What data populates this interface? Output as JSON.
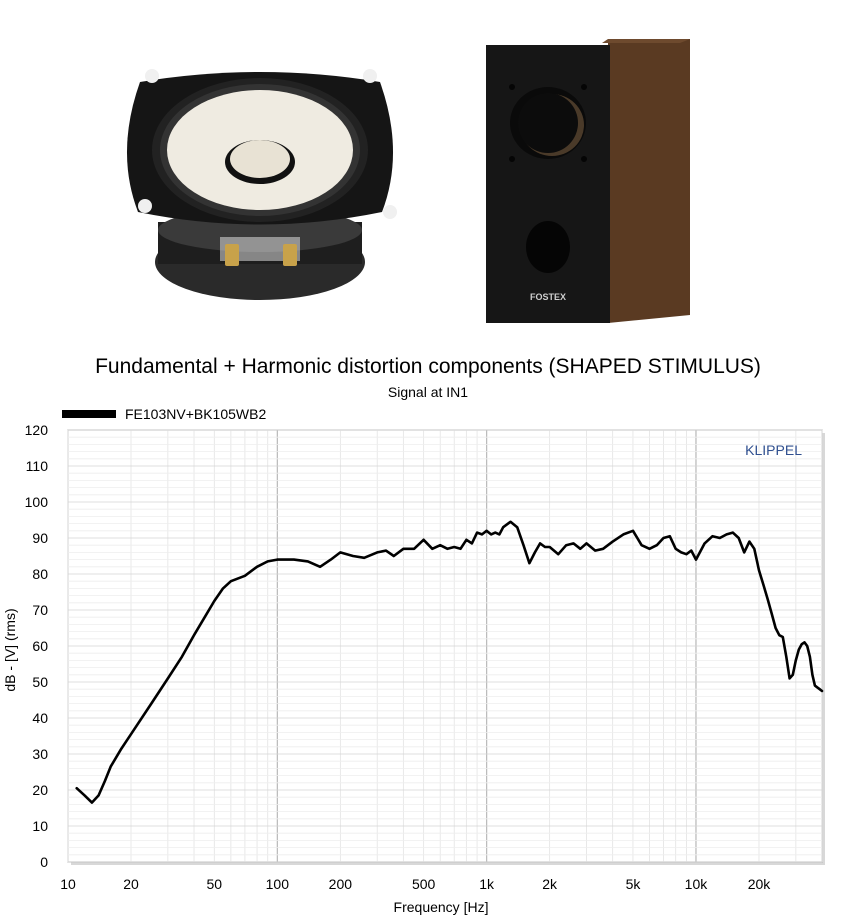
{
  "colors": {
    "series": "#000000",
    "watermark": "#2f4f8f",
    "grid_major": "#b8b8b8",
    "grid_minor": "#e3e3e3",
    "cone": "#efebe1",
    "cabinet_front": "#161616",
    "cabinet_side": "#5a3a22"
  },
  "photos": {
    "speaker_icon": "speaker-driver-photo",
    "cabinet_icon": "speaker-cabinet-photo",
    "cabinet_logo": "FOSTEX"
  },
  "chart_data": {
    "type": "line",
    "title": "Fundamental + Harmonic distortion components (SHAPED STIMULUS)",
    "subtitle": "Signal at IN1",
    "xlabel": "Frequency [Hz]",
    "ylabel": "dB - [V]  (rms)",
    "watermark": "KLIPPEL",
    "x_scale": "log",
    "xlim": [
      10,
      40000
    ],
    "ylim": [
      0,
      120
    ],
    "grid": true,
    "legend_position": "top-left",
    "x_ticks": [
      {
        "value": 10,
        "label": "10"
      },
      {
        "value": 20,
        "label": "20"
      },
      {
        "value": 50,
        "label": "50"
      },
      {
        "value": 100,
        "label": "100"
      },
      {
        "value": 200,
        "label": "200"
      },
      {
        "value": 500,
        "label": "500"
      },
      {
        "value": 1000,
        "label": "1k"
      },
      {
        "value": 2000,
        "label": "2k"
      },
      {
        "value": 5000,
        "label": "5k"
      },
      {
        "value": 10000,
        "label": "10k"
      },
      {
        "value": 20000,
        "label": "20k"
      }
    ],
    "y_ticks": [
      0,
      10,
      20,
      30,
      40,
      50,
      60,
      70,
      80,
      90,
      100,
      110,
      120
    ],
    "series": [
      {
        "name": "FE103NV+BK105WB2",
        "color": "#000000",
        "points": [
          [
            11,
            20.5
          ],
          [
            12,
            18.5
          ],
          [
            13,
            16.5
          ],
          [
            14,
            18.5
          ],
          [
            15,
            22.5
          ],
          [
            16,
            26.5
          ],
          [
            18,
            31.5
          ],
          [
            20,
            35.5
          ],
          [
            25,
            44
          ],
          [
            30,
            51
          ],
          [
            35,
            57
          ],
          [
            40,
            63
          ],
          [
            45,
            68
          ],
          [
            50,
            72.5
          ],
          [
            55,
            76
          ],
          [
            60,
            78
          ],
          [
            70,
            79.5
          ],
          [
            80,
            82
          ],
          [
            90,
            83.5
          ],
          [
            100,
            84
          ],
          [
            120,
            84
          ],
          [
            140,
            83.5
          ],
          [
            160,
            82
          ],
          [
            180,
            84
          ],
          [
            200,
            86
          ],
          [
            230,
            85
          ],
          [
            260,
            84.5
          ],
          [
            300,
            86
          ],
          [
            330,
            86.5
          ],
          [
            360,
            85
          ],
          [
            400,
            87
          ],
          [
            450,
            87
          ],
          [
            500,
            89.5
          ],
          [
            550,
            87
          ],
          [
            600,
            88
          ],
          [
            650,
            87
          ],
          [
            700,
            87.5
          ],
          [
            750,
            87
          ],
          [
            800,
            89.5
          ],
          [
            850,
            88.5
          ],
          [
            900,
            91.5
          ],
          [
            950,
            91
          ],
          [
            1000,
            92
          ],
          [
            1050,
            91
          ],
          [
            1100,
            91.5
          ],
          [
            1150,
            91
          ],
          [
            1200,
            93
          ],
          [
            1300,
            94.5
          ],
          [
            1400,
            93
          ],
          [
            1500,
            88
          ],
          [
            1600,
            83
          ],
          [
            1700,
            86
          ],
          [
            1800,
            88.5
          ],
          [
            1900,
            87.5
          ],
          [
            2000,
            87.5
          ],
          [
            2200,
            85.5
          ],
          [
            2400,
            88
          ],
          [
            2600,
            88.5
          ],
          [
            2800,
            87
          ],
          [
            3000,
            88.5
          ],
          [
            3300,
            86.5
          ],
          [
            3600,
            87
          ],
          [
            4000,
            89
          ],
          [
            4500,
            91
          ],
          [
            5000,
            92
          ],
          [
            5500,
            88
          ],
          [
            6000,
            87
          ],
          [
            6500,
            88
          ],
          [
            7000,
            90
          ],
          [
            7500,
            90.5
          ],
          [
            8000,
            87
          ],
          [
            8500,
            86
          ],
          [
            9000,
            85.5
          ],
          [
            9500,
            86.5
          ],
          [
            10000,
            84
          ],
          [
            11000,
            88.5
          ],
          [
            12000,
            90.5
          ],
          [
            13000,
            90
          ],
          [
            14000,
            91
          ],
          [
            15000,
            91.5
          ],
          [
            16000,
            90
          ],
          [
            17000,
            86
          ],
          [
            18000,
            89
          ],
          [
            19000,
            87
          ],
          [
            20000,
            81
          ],
          [
            21000,
            77
          ],
          [
            22000,
            73
          ],
          [
            23000,
            69
          ],
          [
            24000,
            65
          ],
          [
            25000,
            63
          ],
          [
            26000,
            62.5
          ],
          [
            27000,
            57
          ],
          [
            28000,
            51
          ],
          [
            29000,
            52
          ],
          [
            30000,
            56
          ],
          [
            31000,
            59
          ],
          [
            32000,
            60.5
          ],
          [
            33000,
            61
          ],
          [
            34000,
            60
          ],
          [
            35000,
            57
          ],
          [
            36000,
            52
          ],
          [
            37000,
            49
          ],
          [
            38000,
            48.5
          ],
          [
            39000,
            48
          ],
          [
            40000,
            47.5
          ]
        ]
      }
    ]
  }
}
